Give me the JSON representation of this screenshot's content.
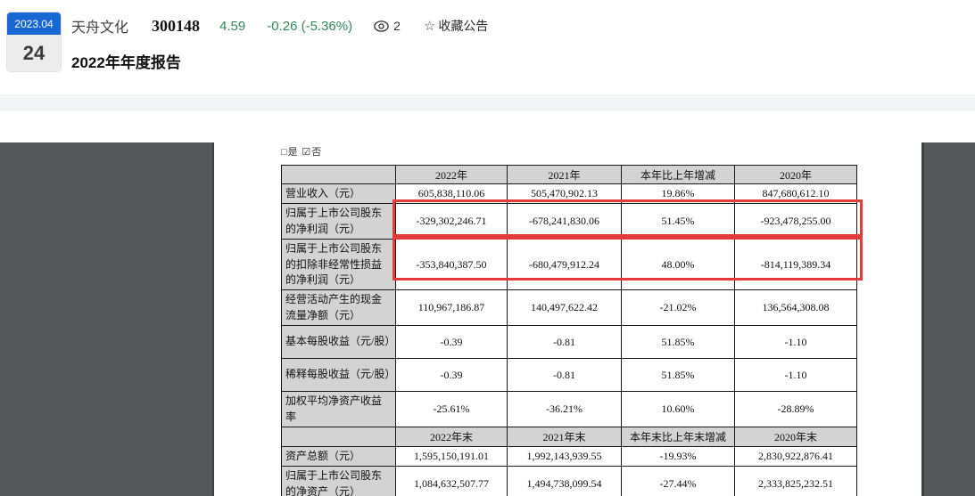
{
  "header": {
    "date_badge": {
      "month": "2023.04",
      "day": "24"
    },
    "stock": {
      "name": "天舟文化",
      "code": "300148",
      "price": "4.59",
      "change": "-0.26 (-5.36%)"
    },
    "views_count": "2",
    "favorite_label": "收藏公告",
    "star_icon": "☆",
    "title": "2022年年度报告"
  },
  "document": {
    "checkbox_line": "□是 ☑否",
    "table": {
      "header_row_1": [
        "",
        "2022年",
        "2021年",
        "本年比上年增减",
        "2020年"
      ],
      "rows_1": [
        {
          "label": "营业收入（元）",
          "values": [
            "605,838,110.06",
            "505,470,902.13",
            "19.86%",
            "847,680,612.10"
          ],
          "highlight": false
        },
        {
          "label": "归属于上市公司股东的净利润（元）",
          "values": [
            "-329,302,246.71",
            "-678,241,830.06",
            "51.45%",
            "-923,478,255.00"
          ],
          "highlight": true
        },
        {
          "label": "归属于上市公司股东的扣除非经常性损益的净利润（元）",
          "values": [
            "-353,840,387.50",
            "-680,479,912.24",
            "48.00%",
            "-814,119,389.34"
          ],
          "highlight": true
        },
        {
          "label": "经营活动产生的现金流量净额（元）",
          "values": [
            "110,967,186.87",
            "140,497,622.42",
            "-21.02%",
            "136,564,308.08"
          ],
          "highlight": false
        },
        {
          "label": "基本每股收益（元/股）",
          "values": [
            "-0.39",
            "-0.81",
            "51.85%",
            "-1.10"
          ],
          "highlight": false
        },
        {
          "label": "稀释每股收益（元/股）",
          "values": [
            "-0.39",
            "-0.81",
            "51.85%",
            "-1.10"
          ],
          "highlight": false
        },
        {
          "label": "加权平均净资产收益率",
          "values": [
            "-25.61%",
            "-36.21%",
            "10.60%",
            "-28.89%"
          ],
          "highlight": false
        }
      ],
      "header_row_2": [
        "",
        "2022年末",
        "2021年末",
        "本年末比上年末增减",
        "2020年末"
      ],
      "rows_2": [
        {
          "label": "资产总额（元）",
          "values": [
            "1,595,150,191.01",
            "1,992,143,939.55",
            "-19.93%",
            "2,830,922,876.41"
          ]
        },
        {
          "label": "归属于上市公司股东的净资产（元）",
          "values": [
            "1,084,632,507.77",
            "1,494,738,099.54",
            "-27.44%",
            "2,333,825,232.51"
          ]
        }
      ]
    }
  },
  "colors": {
    "badge_blue": "#1967d2",
    "stock_green": "#35875a",
    "highlight_red": "#e23b3b",
    "table_header_gray": "#d3d3d3",
    "viewer_dark_gray": "#54585b",
    "toolbar_band_gray": "#f4f5f6"
  }
}
